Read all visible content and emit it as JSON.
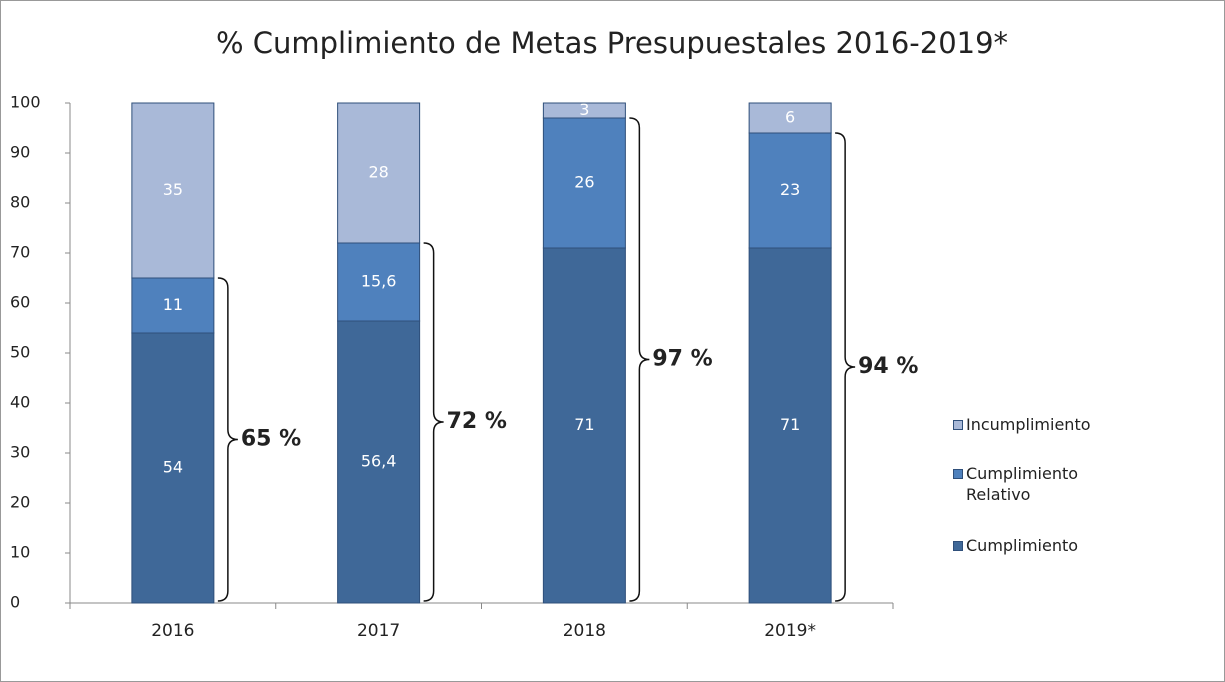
{
  "chart_data": {
    "type": "stacked_bar",
    "title": "% Cumplimiento de Metas Presupuestales 2016-2019*",
    "categories": [
      "2016",
      "2017",
      "2018",
      "2019*"
    ],
    "series": [
      {
        "name": "Cumplimiento",
        "color": "#3f6898",
        "values": [
          54,
          56.4,
          71,
          71
        ],
        "value_labels": [
          "54",
          "56,4",
          "71",
          "71"
        ]
      },
      {
        "name": "Cumplimiento Relativo",
        "color": "#4f81bd",
        "values": [
          11,
          15.6,
          26,
          23
        ],
        "value_labels": [
          "11",
          "15,6",
          "26",
          "23"
        ]
      },
      {
        "name": "Incumplimiento",
        "color": "#a9b9d8",
        "values": [
          35,
          28,
          3,
          6
        ]
      }
    ],
    "annotations": [
      "65 %",
      "72 %",
      "97 %",
      "94 %"
    ],
    "ylim": [
      0,
      100
    ],
    "yticks": [
      0,
      10,
      20,
      30,
      40,
      50,
      60,
      70,
      80,
      90,
      100
    ],
    "legend": "right"
  }
}
